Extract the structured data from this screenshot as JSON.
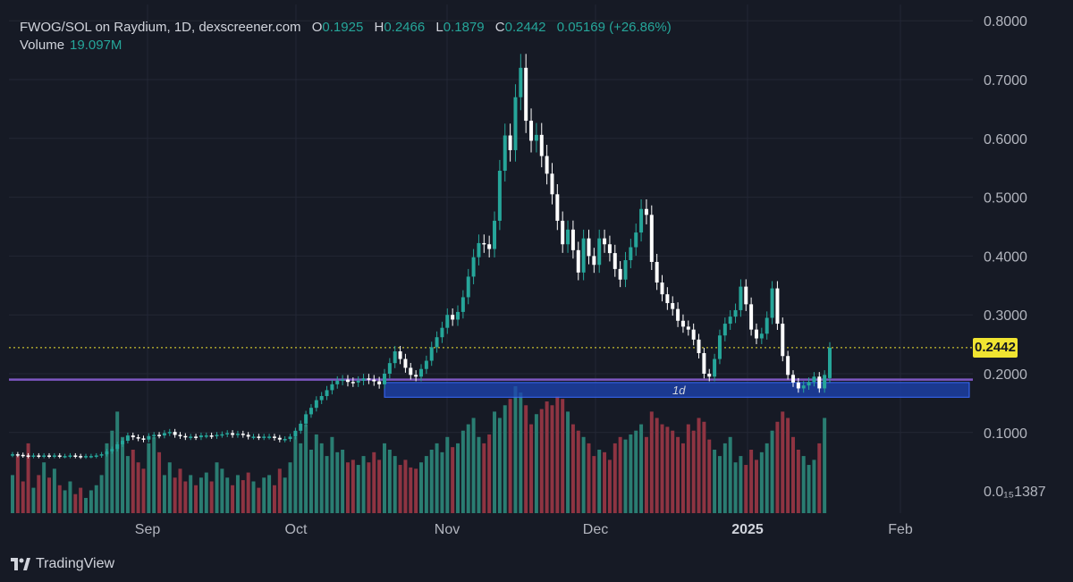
{
  "header": {
    "pair": "FWOG/SOL on Raydium, 1D, dexscreener.com",
    "o_label": "O",
    "o_value": "0.1925",
    "h_label": "H",
    "h_value": "0.2466",
    "l_label": "L",
    "l_value": "0.1879",
    "c_label": "C",
    "c_value": "0.2442",
    "change": "0.05169 (+26.86%)"
  },
  "volume": {
    "label": "Volume",
    "value": "19.097M"
  },
  "current_price_tag": "0.2442",
  "zone_label": "1d",
  "brand": "TradingView",
  "colors": {
    "up": "#26a69a",
    "down_candle": "#ffffff",
    "vol_up": "#2a7d72",
    "vol_down": "#8e3442",
    "support_line": "#7e57c2",
    "zone": "#1e44b4",
    "price_line": "#f0e431"
  },
  "chart_data": {
    "type": "candlestick",
    "title": "FWOG/SOL on Raydium, 1D, dexscreener.com",
    "y_ticks": [
      "0.8000",
      "0.7000",
      "0.6000",
      "0.5000",
      "0.4000",
      "0.3000",
      "0.2000",
      "0.1000",
      "0.0₁₅1387"
    ],
    "x_ticks": [
      "Sep",
      "Oct",
      "Nov",
      "Dec",
      "2025",
      "Feb"
    ],
    "ylim": [
      0,
      0.8
    ],
    "last_close": 0.2442,
    "support_line": 0.19,
    "zone": {
      "low": 0.16,
      "high": 0.185,
      "label": "1d"
    },
    "closes": [
      0.063,
      0.062,
      0.061,
      0.06,
      0.061,
      0.06,
      0.061,
      0.06,
      0.061,
      0.06,
      0.06,
      0.061,
      0.06,
      0.059,
      0.06,
      0.06,
      0.061,
      0.063,
      0.068,
      0.072,
      0.08,
      0.086,
      0.095,
      0.092,
      0.09,
      0.088,
      0.094,
      0.096,
      0.095,
      0.099,
      0.101,
      0.096,
      0.094,
      0.092,
      0.093,
      0.092,
      0.095,
      0.095,
      0.094,
      0.096,
      0.097,
      0.099,
      0.096,
      0.098,
      0.096,
      0.093,
      0.093,
      0.092,
      0.093,
      0.093,
      0.091,
      0.088,
      0.089,
      0.093,
      0.103,
      0.115,
      0.131,
      0.142,
      0.155,
      0.162,
      0.172,
      0.182,
      0.188,
      0.19,
      0.186,
      0.185,
      0.188,
      0.192,
      0.19,
      0.187,
      0.182,
      0.2,
      0.218,
      0.238,
      0.225,
      0.21,
      0.198,
      0.195,
      0.208,
      0.222,
      0.245,
      0.262,
      0.278,
      0.3,
      0.292,
      0.305,
      0.33,
      0.365,
      0.398,
      0.422,
      0.42,
      0.412,
      0.46,
      0.545,
      0.605,
      0.58,
      0.67,
      0.72,
      0.63,
      0.596,
      0.606,
      0.57,
      0.54,
      0.505,
      0.46,
      0.42,
      0.445,
      0.41,
      0.372,
      0.43,
      0.4,
      0.385,
      0.43,
      0.42,
      0.405,
      0.378,
      0.36,
      0.393,
      0.415,
      0.44,
      0.48,
      0.47,
      0.39,
      0.355,
      0.335,
      0.32,
      0.31,
      0.29,
      0.28,
      0.275,
      0.258,
      0.235,
      0.2,
      0.195,
      0.225,
      0.265,
      0.285,
      0.297,
      0.308,
      0.348,
      0.318,
      0.275,
      0.26,
      0.268,
      0.295,
      0.345,
      0.285,
      0.23,
      0.198,
      0.185,
      0.175,
      0.18,
      0.186,
      0.195,
      0.175,
      0.198,
      0.2442
    ],
    "opens": [
      0.062,
      0.063,
      0.062,
      0.061,
      0.06,
      0.061,
      0.06,
      0.061,
      0.06,
      0.061,
      0.06,
      0.06,
      0.061,
      0.06,
      0.059,
      0.06,
      0.06,
      0.061,
      0.063,
      0.068,
      0.072,
      0.08,
      0.086,
      0.095,
      0.092,
      0.09,
      0.088,
      0.094,
      0.096,
      0.095,
      0.099,
      0.101,
      0.096,
      0.094,
      0.092,
      0.093,
      0.092,
      0.095,
      0.095,
      0.094,
      0.096,
      0.097,
      0.099,
      0.096,
      0.098,
      0.096,
      0.093,
      0.093,
      0.092,
      0.093,
      0.093,
      0.091,
      0.088,
      0.089,
      0.093,
      0.103,
      0.115,
      0.131,
      0.142,
      0.155,
      0.162,
      0.172,
      0.182,
      0.188,
      0.19,
      0.186,
      0.185,
      0.188,
      0.192,
      0.19,
      0.187,
      0.182,
      0.2,
      0.218,
      0.238,
      0.225,
      0.21,
      0.198,
      0.195,
      0.208,
      0.222,
      0.245,
      0.262,
      0.278,
      0.3,
      0.292,
      0.305,
      0.33,
      0.365,
      0.398,
      0.422,
      0.42,
      0.412,
      0.46,
      0.545,
      0.605,
      0.58,
      0.67,
      0.72,
      0.63,
      0.596,
      0.606,
      0.57,
      0.54,
      0.505,
      0.46,
      0.42,
      0.445,
      0.41,
      0.372,
      0.43,
      0.4,
      0.385,
      0.43,
      0.42,
      0.405,
      0.378,
      0.36,
      0.393,
      0.415,
      0.44,
      0.48,
      0.47,
      0.39,
      0.355,
      0.335,
      0.32,
      0.31,
      0.29,
      0.28,
      0.275,
      0.258,
      0.235,
      0.2,
      0.195,
      0.225,
      0.265,
      0.285,
      0.297,
      0.308,
      0.348,
      0.318,
      0.275,
      0.26,
      0.268,
      0.295,
      0.345,
      0.285,
      0.23,
      0.198,
      0.185,
      0.175,
      0.18,
      0.186,
      0.195,
      0.175,
      0.1925
    ],
    "volumes": [
      0.3,
      0.45,
      0.25,
      0.55,
      0.2,
      0.3,
      0.4,
      0.28,
      0.35,
      0.22,
      0.18,
      0.25,
      0.15,
      0.2,
      0.12,
      0.18,
      0.22,
      0.3,
      0.55,
      0.65,
      0.8,
      0.6,
      0.45,
      0.5,
      0.4,
      0.35,
      0.55,
      0.6,
      0.48,
      0.3,
      0.4,
      0.28,
      0.35,
      0.25,
      0.3,
      0.22,
      0.28,
      0.32,
      0.25,
      0.4,
      0.35,
      0.28,
      0.22,
      0.3,
      0.26,
      0.32,
      0.25,
      0.2,
      0.28,
      0.3,
      0.22,
      0.35,
      0.28,
      0.4,
      0.6,
      0.55,
      0.7,
      0.5,
      0.62,
      0.55,
      0.45,
      0.6,
      0.48,
      0.5,
      0.4,
      0.42,
      0.38,
      0.45,
      0.4,
      0.48,
      0.42,
      0.55,
      0.5,
      0.45,
      0.38,
      0.42,
      0.36,
      0.35,
      0.4,
      0.45,
      0.5,
      0.55,
      0.48,
      0.6,
      0.52,
      0.55,
      0.65,
      0.7,
      0.75,
      0.6,
      0.55,
      0.62,
      0.8,
      0.75,
      0.85,
      0.9,
      1.0,
      0.95,
      0.85,
      0.7,
      0.78,
      0.82,
      0.88,
      0.85,
      0.92,
      0.9,
      0.8,
      0.7,
      0.65,
      0.6,
      0.55,
      0.45,
      0.5,
      0.48,
      0.42,
      0.55,
      0.6,
      0.58,
      0.62,
      0.65,
      0.7,
      0.6,
      0.8,
      0.75,
      0.7,
      0.68,
      0.65,
      0.6,
      0.55,
      0.7,
      0.65,
      0.75,
      0.72,
      0.58,
      0.5,
      0.45,
      0.55,
      0.6,
      0.4,
      0.45,
      0.38,
      0.5,
      0.42,
      0.48,
      0.55,
      0.65,
      0.72,
      0.8,
      0.75,
      0.6,
      0.5,
      0.45,
      0.38,
      0.42,
      0.55,
      0.75
    ]
  }
}
